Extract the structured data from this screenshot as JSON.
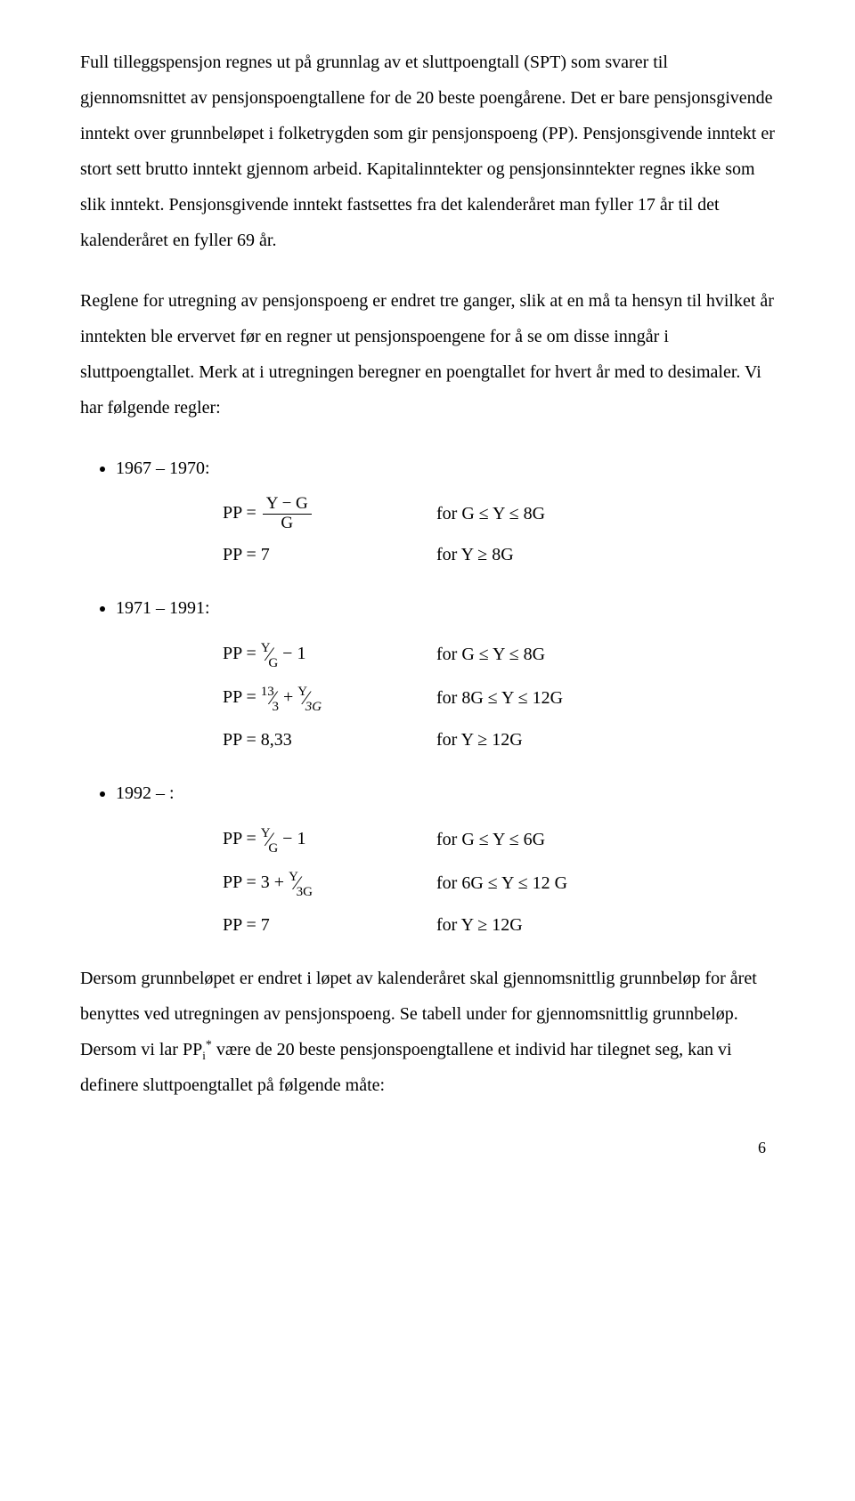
{
  "paragraphs": {
    "p1": "Full tilleggspensjon regnes ut på grunnlag av et sluttpoengtall (SPT) som svarer til gjennomsnittet av pensjonspoengtallene for de 20 beste poengårene. Det er bare pensjonsgivende inntekt over grunnbeløpet i folketrygden som gir pensjonspoeng (PP). Pensjonsgivende inntekt er stort sett brutto inntekt gjennom arbeid. Kapitalinntekter og pensjonsinntekter regnes ikke som slik inntekt. Pensjonsgivende inntekt fastsettes fra det kalenderåret man fyller 17 år til det kalenderåret en fyller 69 år.",
    "p2": "Reglene for utregning av pensjonspoeng er endret tre ganger, slik at en må ta hensyn til hvilket år inntekten ble ervervet før en regner ut pensjonspoengene for å se om disse inngår i sluttpoengtallet. Merk at i utregningen beregner en poengtallet for hvert år med to desimaler. Vi har følgende regler:",
    "p3_prefix": "Dersom grunnbeløpet er endret i løpet av kalenderåret skal gjennomsnittlig grunnbeløp for året benyttes ved utregningen av pensjonspoeng. Se tabell under for gjennomsnittlig grunnbeløp. Dersom vi lar PP",
    "p3_sub": "i",
    "p3_sup": "*",
    "p3_suffix": " være de 20 beste pensjonspoengtallene et individ har tilegnet seg, kan vi definere sluttpoengtallet på følgende måte:"
  },
  "periods": {
    "a": "1967 – 1970:",
    "b": "1971 – 1991:",
    "c": "1992 – :"
  },
  "formulas": {
    "a1_left_pre": "PP = ",
    "a1_frac_num": "Y − G",
    "a1_frac_den": "G",
    "a1_right": "for  G ≤ Y ≤ 8G",
    "a2_left": "PP = 7",
    "a2_right": "for  Y ≥ 8G",
    "b1_left_pre": "PP = ",
    "b1_sf_top": "Y",
    "b1_sf_bot": "G",
    "b1_left_post": " − 1",
    "b1_right": "for  G ≤ Y ≤ 8G",
    "b2_left_pre": "PP = ",
    "b2_sf1_top": "13",
    "b2_sf1_bot": "3",
    "b2_mid": "  + ",
    "b2_sf2_top": "Y",
    "b2_sf2_bot": "3G",
    "b2_right": "for  8G ≤ Y ≤ 12G",
    "b3_left": "PP = 8,33",
    "b3_right": "for  Y ≥ 12G",
    "c1_left_pre": "PP = ",
    "c1_sf_top": "Y",
    "c1_sf_bot": "G",
    "c1_left_post": " − 1",
    "c1_right": "for  G ≤ Y ≤ 6G",
    "c2_left_pre": "PP = 3 + ",
    "c2_sf_top": "Y",
    "c2_sf_bot": "3G",
    "c2_right": "for  6G ≤ Y ≤ 12 G",
    "c3_left": "PP = 7",
    "c3_right": "for  Y ≥ 12G"
  },
  "page_number": "6"
}
